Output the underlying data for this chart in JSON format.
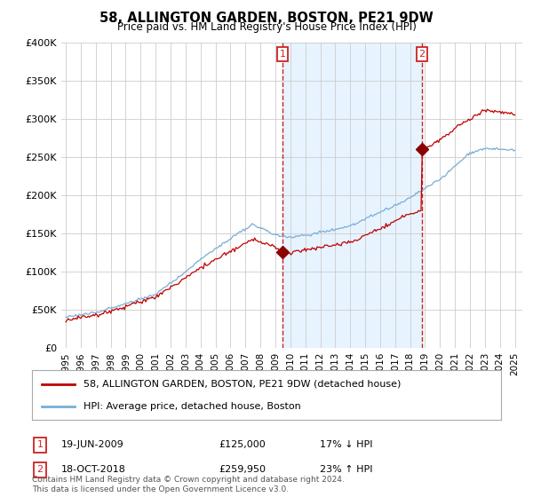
{
  "title": "58, ALLINGTON GARDEN, BOSTON, PE21 9DW",
  "subtitle": "Price paid vs. HM Land Registry's House Price Index (HPI)",
  "legend_line1": "58, ALLINGTON GARDEN, BOSTON, PE21 9DW (detached house)",
  "legend_line2": "HPI: Average price, detached house, Boston",
  "transaction1_date": "19-JUN-2009",
  "transaction1_price": "£125,000",
  "transaction1_hpi": "17% ↓ HPI",
  "transaction1_year": 2009.47,
  "transaction1_value": 125000,
  "transaction2_date": "18-OCT-2018",
  "transaction2_price": "£259,950",
  "transaction2_hpi": "23% ↑ HPI",
  "transaction2_year": 2018.79,
  "transaction2_value": 259950,
  "hpi_color": "#7aadd4",
  "price_color": "#c00000",
  "marker_color": "#8b0000",
  "vline_color": "#cc2222",
  "shade_color": "#ddeeff",
  "background_color": "#ffffff",
  "grid_color": "#cccccc",
  "ylim": [
    0,
    400000
  ],
  "xlim_start": 1994.7,
  "xlim_end": 2025.5,
  "ylabel_ticks": [
    0,
    50000,
    100000,
    150000,
    200000,
    250000,
    300000,
    350000,
    400000
  ],
  "ylabel_labels": [
    "£0",
    "£50K",
    "£100K",
    "£150K",
    "£200K",
    "£250K",
    "£300K",
    "£350K",
    "£400K"
  ],
  "xtick_years": [
    1995,
    1996,
    1997,
    1998,
    1999,
    2000,
    2001,
    2002,
    2003,
    2004,
    2005,
    2006,
    2007,
    2008,
    2009,
    2010,
    2011,
    2012,
    2013,
    2014,
    2015,
    2016,
    2017,
    2018,
    2019,
    2020,
    2021,
    2022,
    2023,
    2024,
    2025
  ],
  "footnote": "Contains HM Land Registry data © Crown copyright and database right 2024.\nThis data is licensed under the Open Government Licence v3.0."
}
